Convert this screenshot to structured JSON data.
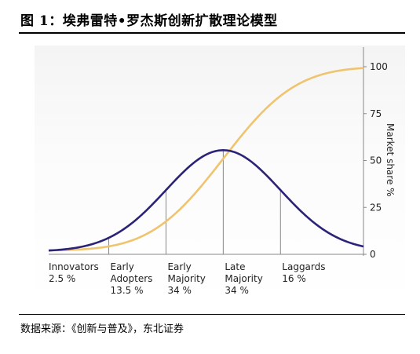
{
  "figure": {
    "title": "图 1：埃弗雷特•罗杰斯创新扩散理论模型",
    "source": "数据来源：《创新与普及》，东北证券"
  },
  "chart_data": {
    "type": "line",
    "ylabel": "Market share %",
    "ylim": [
      0,
      100
    ],
    "yticks": [
      "0",
      "25",
      "50",
      "75",
      "100"
    ],
    "grid": false,
    "colors": {
      "adoption": "#2a2377",
      "market_share": "#f0c46e",
      "dividers": "#888888"
    },
    "segments": [
      {
        "lines": [
          "Innovators",
          "2.5 %"
        ],
        "share_pct": 2.5
      },
      {
        "lines": [
          "Early",
          "Adopters",
          "13.5 %"
        ],
        "share_pct": 13.5
      },
      {
        "lines": [
          "Early",
          "Majority",
          "34 %"
        ],
        "share_pct": 34
      },
      {
        "lines": [
          "Late",
          "Majority",
          "34 %"
        ],
        "share_pct": 34
      },
      {
        "lines": [
          "Laggards",
          "16 %"
        ],
        "share_pct": 16
      }
    ],
    "series": [
      {
        "key": "adoption",
        "shape": "normal-bell",
        "peak_sd": 0
      },
      {
        "key": "market_share",
        "shape": "cumulative-normal",
        "range": [
          0,
          100
        ]
      }
    ],
    "segment_boundaries_sd": [
      -2,
      -1,
      0,
      1
    ]
  }
}
